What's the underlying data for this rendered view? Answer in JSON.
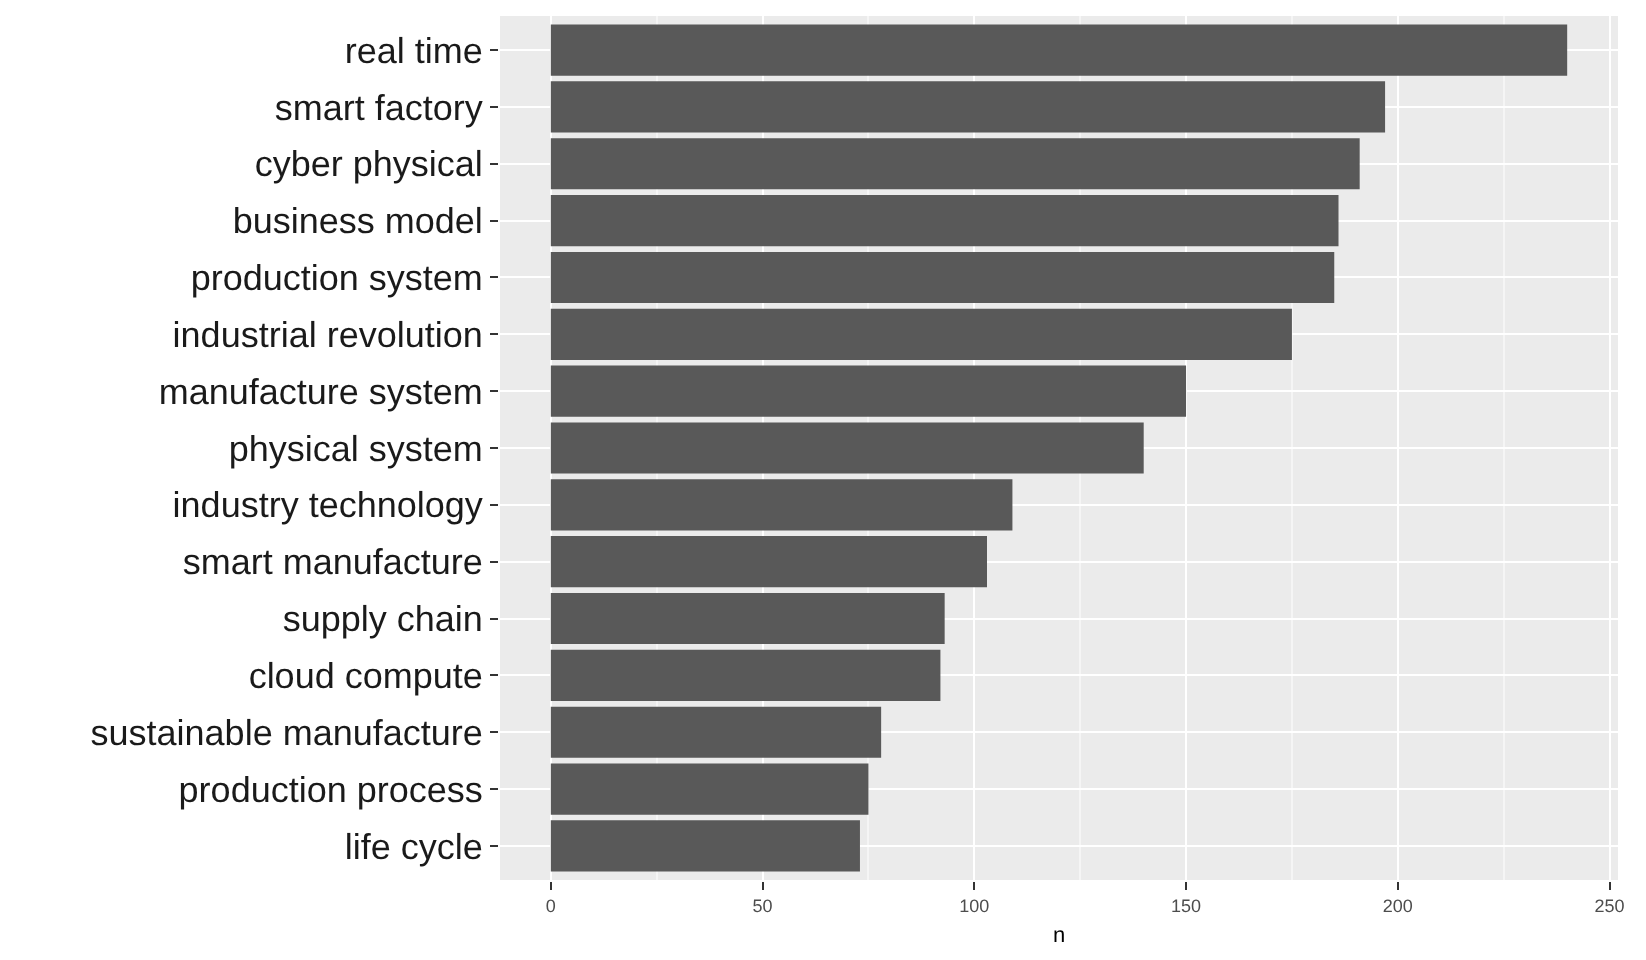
{
  "chart_data": {
    "type": "bar",
    "orientation": "horizontal",
    "xlabel": "n",
    "categories": [
      "real time",
      "smart factory",
      "cyber physical",
      "business model",
      "production system",
      "industrial revolution",
      "manufacture system",
      "physical system",
      "industry technology",
      "smart manufacture",
      "supply chain",
      "cloud compute",
      "sustainable manufacture",
      "production process",
      "life cycle"
    ],
    "values": [
      240,
      197,
      191,
      186,
      185,
      175,
      150,
      140,
      109,
      103,
      93,
      92,
      78,
      75,
      73
    ],
    "color": "#595959",
    "xlim": [
      -12,
      252
    ],
    "xticks": [
      0,
      50,
      100,
      150,
      200,
      250
    ],
    "grid": true
  }
}
